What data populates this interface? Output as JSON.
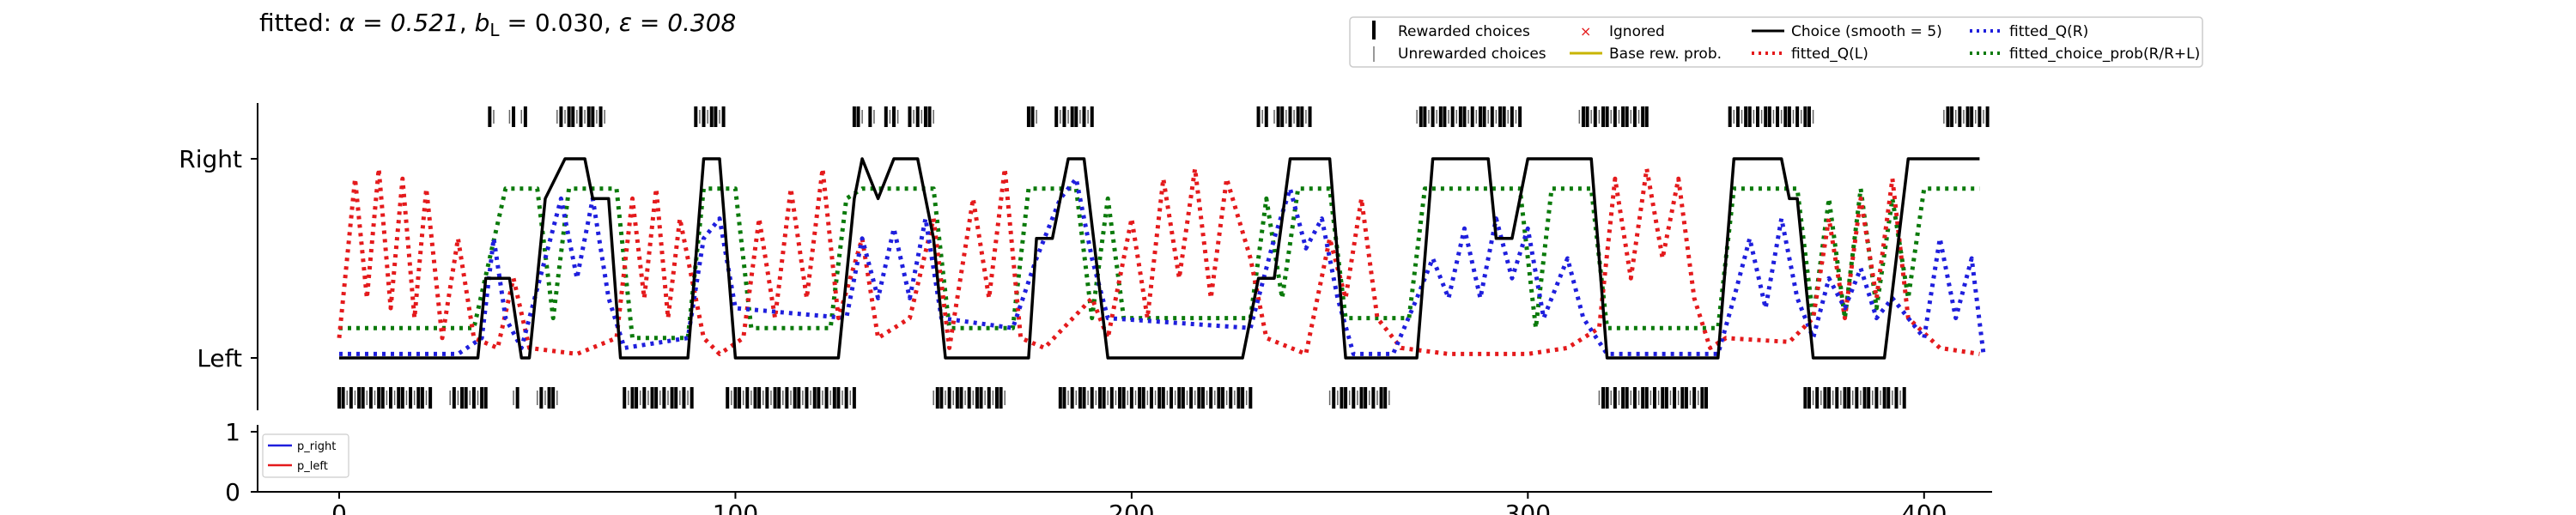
{
  "title": {
    "prefix": "fitted: ",
    "alpha_label": "α = 0.521",
    "bL_label": "b",
    "bL_sub": "L",
    "bL_value": " = 0.030",
    "eps_label": "ε = 0.308"
  },
  "legend_main": {
    "rewarded": "Rewarded choices",
    "unrewarded": "Unrewarded choices",
    "ignored": "Ignored",
    "base_prob": "Base rew. prob.",
    "choice_smooth": "Choice (smooth = 5)",
    "fitted_qL": "fitted_Q(L)",
    "fitted_qR": "fitted_Q(R)",
    "fitted_prob": "fitted_choice_prob(R/R+L)"
  },
  "legend_small": {
    "p_right": "p_right",
    "p_left": "p_left"
  },
  "colors": {
    "choice": "#000000",
    "qL": "#e41a1c",
    "qR": "#1f1fdd",
    "prob": "#0b7a0b",
    "p_right": "#1f1fdd",
    "p_left": "#e41a1c",
    "base": "#c8b400",
    "ignored": "#e41a1c"
  },
  "chart_data": [
    {
      "type": "line",
      "ytick_labels": [
        "Left",
        "Right"
      ],
      "xlim": [
        -20,
        415
      ],
      "ylim": [
        -0.3,
        1.3
      ],
      "choices": {
        "right_trials": [
          [
            38,
            39
          ],
          [
            43,
            44
          ],
          [
            46,
            47
          ],
          [
            55,
            67
          ],
          [
            90,
            97
          ],
          [
            130,
            132
          ],
          [
            134,
            135
          ],
          [
            138,
            141
          ],
          [
            144,
            150
          ],
          [
            174,
            176
          ],
          [
            181,
            190
          ],
          [
            232,
            234
          ],
          [
            236,
            245
          ],
          [
            272,
            298
          ],
          [
            313,
            330
          ],
          [
            351,
            372
          ],
          [
            405,
            416
          ]
        ],
        "left_trials": [
          [
            0,
            23
          ],
          [
            28,
            37
          ],
          [
            44,
            45
          ],
          [
            50,
            55
          ],
          [
            72,
            89
          ],
          [
            98,
            130
          ],
          [
            150,
            168
          ],
          [
            182,
            230
          ],
          [
            250,
            265
          ],
          [
            318,
            345
          ],
          [
            370,
            395
          ]
        ]
      },
      "series": {
        "choice_smooth": [
          [
            0,
            0
          ],
          [
            35,
            0
          ],
          [
            37,
            0.4
          ],
          [
            43,
            0.4
          ],
          [
            46,
            0
          ],
          [
            48,
            0
          ],
          [
            52,
            0.8
          ],
          [
            57,
            1
          ],
          [
            62,
            1
          ],
          [
            64,
            0.8
          ],
          [
            68,
            0.8
          ],
          [
            71,
            0
          ],
          [
            88,
            0
          ],
          [
            92,
            1
          ],
          [
            96,
            1
          ],
          [
            100,
            0
          ],
          [
            126,
            0
          ],
          [
            130,
            0.8
          ],
          [
            132,
            1
          ],
          [
            136,
            0.8
          ],
          [
            140,
            1
          ],
          [
            146,
            1
          ],
          [
            150,
            0.6
          ],
          [
            153,
            0
          ],
          [
            174,
            0
          ],
          [
            176,
            0.6
          ],
          [
            180,
            0.6
          ],
          [
            184,
            1
          ],
          [
            188,
            1
          ],
          [
            194,
            0
          ],
          [
            228,
            0
          ],
          [
            232,
            0.4
          ],
          [
            236,
            0.4
          ],
          [
            240,
            1
          ],
          [
            250,
            1
          ],
          [
            254,
            0
          ],
          [
            272,
            0
          ],
          [
            276,
            1
          ],
          [
            290,
            1
          ],
          [
            292,
            0.6
          ],
          [
            296,
            0.6
          ],
          [
            300,
            1
          ],
          [
            316,
            1
          ],
          [
            320,
            0
          ],
          [
            348,
            0
          ],
          [
            352,
            1
          ],
          [
            364,
            1
          ],
          [
            366,
            0.8
          ],
          [
            368,
            0.8
          ],
          [
            372,
            0
          ],
          [
            390,
            0
          ],
          [
            396,
            1
          ],
          [
            414,
            1
          ]
        ],
        "qL": [
          [
            0,
            0.1
          ],
          [
            4,
            0.9
          ],
          [
            7,
            0.3
          ],
          [
            10,
            0.95
          ],
          [
            13,
            0.25
          ],
          [
            16,
            0.9
          ],
          [
            19,
            0.2
          ],
          [
            22,
            0.85
          ],
          [
            26,
            0.1
          ],
          [
            30,
            0.6
          ],
          [
            34,
            0.1
          ],
          [
            40,
            0.05
          ],
          [
            44,
            0.4
          ],
          [
            48,
            0.05
          ],
          [
            60,
            0.02
          ],
          [
            70,
            0.1
          ],
          [
            74,
            0.8
          ],
          [
            77,
            0.3
          ],
          [
            80,
            0.85
          ],
          [
            83,
            0.2
          ],
          [
            86,
            0.7
          ],
          [
            92,
            0.1
          ],
          [
            96,
            0.02
          ],
          [
            102,
            0.1
          ],
          [
            106,
            0.7
          ],
          [
            110,
            0.2
          ],
          [
            114,
            0.85
          ],
          [
            118,
            0.3
          ],
          [
            122,
            0.95
          ],
          [
            126,
            0.2
          ],
          [
            132,
            0.6
          ],
          [
            136,
            0.1
          ],
          [
            144,
            0.2
          ],
          [
            150,
            0.7
          ],
          [
            154,
            0.05
          ],
          [
            160,
            0.8
          ],
          [
            164,
            0.3
          ],
          [
            168,
            0.95
          ],
          [
            172,
            0.1
          ],
          [
            178,
            0.05
          ],
          [
            190,
            0.3
          ],
          [
            194,
            0.1
          ],
          [
            200,
            0.7
          ],
          [
            204,
            0.2
          ],
          [
            208,
            0.9
          ],
          [
            212,
            0.4
          ],
          [
            216,
            0.95
          ],
          [
            220,
            0.3
          ],
          [
            224,
            0.9
          ],
          [
            230,
            0.5
          ],
          [
            234,
            0.1
          ],
          [
            244,
            0.02
          ],
          [
            250,
            0.6
          ],
          [
            254,
            0.3
          ],
          [
            258,
            0.8
          ],
          [
            262,
            0.2
          ],
          [
            268,
            0.05
          ],
          [
            280,
            0.02
          ],
          [
            300,
            0.02
          ],
          [
            310,
            0.05
          ],
          [
            318,
            0.15
          ],
          [
            322,
            0.9
          ],
          [
            326,
            0.4
          ],
          [
            330,
            0.95
          ],
          [
            334,
            0.5
          ],
          [
            338,
            0.9
          ],
          [
            342,
            0.3
          ],
          [
            346,
            0.05
          ],
          [
            350,
            0.1
          ],
          [
            366,
            0.08
          ],
          [
            372,
            0.2
          ],
          [
            376,
            0.7
          ],
          [
            380,
            0.2
          ],
          [
            384,
            0.8
          ],
          [
            388,
            0.3
          ],
          [
            392,
            0.9
          ],
          [
            396,
            0.2
          ],
          [
            404,
            0.05
          ],
          [
            414,
            0.02
          ]
        ],
        "qR": [
          [
            0,
            0.02
          ],
          [
            30,
            0.02
          ],
          [
            36,
            0.1
          ],
          [
            39,
            0.6
          ],
          [
            42,
            0.2
          ],
          [
            46,
            0.05
          ],
          [
            52,
            0.5
          ],
          [
            56,
            0.8
          ],
          [
            60,
            0.4
          ],
          [
            64,
            0.8
          ],
          [
            68,
            0.3
          ],
          [
            72,
            0.05
          ],
          [
            88,
            0.1
          ],
          [
            92,
            0.6
          ],
          [
            96,
            0.7
          ],
          [
            100,
            0.25
          ],
          [
            128,
            0.2
          ],
          [
            132,
            0.6
          ],
          [
            136,
            0.3
          ],
          [
            140,
            0.65
          ],
          [
            144,
            0.3
          ],
          [
            148,
            0.7
          ],
          [
            152,
            0.2
          ],
          [
            170,
            0.15
          ],
          [
            176,
            0.5
          ],
          [
            182,
            0.8
          ],
          [
            186,
            0.9
          ],
          [
            190,
            0.5
          ],
          [
            194,
            0.2
          ],
          [
            230,
            0.15
          ],
          [
            236,
            0.6
          ],
          [
            240,
            0.85
          ],
          [
            244,
            0.55
          ],
          [
            248,
            0.7
          ],
          [
            252,
            0.3
          ],
          [
            256,
            0.02
          ],
          [
            266,
            0.02
          ],
          [
            272,
            0.3
          ],
          [
            276,
            0.5
          ],
          [
            280,
            0.3
          ],
          [
            284,
            0.65
          ],
          [
            288,
            0.3
          ],
          [
            292,
            0.7
          ],
          [
            296,
            0.4
          ],
          [
            300,
            0.65
          ],
          [
            304,
            0.2
          ],
          [
            310,
            0.5
          ],
          [
            314,
            0.2
          ],
          [
            320,
            0.02
          ],
          [
            348,
            0.02
          ],
          [
            352,
            0.3
          ],
          [
            356,
            0.6
          ],
          [
            360,
            0.25
          ],
          [
            364,
            0.7
          ],
          [
            368,
            0.3
          ],
          [
            372,
            0.1
          ],
          [
            376,
            0.4
          ],
          [
            380,
            0.25
          ],
          [
            384,
            0.45
          ],
          [
            388,
            0.2
          ],
          [
            392,
            0.3
          ],
          [
            400,
            0.1
          ],
          [
            404,
            0.6
          ],
          [
            408,
            0.2
          ],
          [
            412,
            0.5
          ],
          [
            415,
            0.02
          ]
        ],
        "fitted_prob": [
          [
            0,
            0.15
          ],
          [
            34,
            0.15
          ],
          [
            38,
            0.5
          ],
          [
            42,
            0.85
          ],
          [
            50,
            0.85
          ],
          [
            54,
            0.2
          ],
          [
            58,
            0.85
          ],
          [
            70,
            0.85
          ],
          [
            74,
            0.1
          ],
          [
            88,
            0.1
          ],
          [
            92,
            0.85
          ],
          [
            100,
            0.85
          ],
          [
            104,
            0.15
          ],
          [
            124,
            0.15
          ],
          [
            128,
            0.8
          ],
          [
            132,
            0.85
          ],
          [
            150,
            0.85
          ],
          [
            154,
            0.15
          ],
          [
            170,
            0.15
          ],
          [
            174,
            0.85
          ],
          [
            186,
            0.85
          ],
          [
            190,
            0.2
          ],
          [
            194,
            0.8
          ],
          [
            198,
            0.2
          ],
          [
            230,
            0.2
          ],
          [
            234,
            0.8
          ],
          [
            238,
            0.3
          ],
          [
            242,
            0.85
          ],
          [
            250,
            0.85
          ],
          [
            254,
            0.2
          ],
          [
            270,
            0.2
          ],
          [
            274,
            0.85
          ],
          [
            298,
            0.85
          ],
          [
            302,
            0.15
          ],
          [
            306,
            0.85
          ],
          [
            316,
            0.85
          ],
          [
            320,
            0.15
          ],
          [
            348,
            0.15
          ],
          [
            352,
            0.85
          ],
          [
            368,
            0.85
          ],
          [
            372,
            0.2
          ],
          [
            376,
            0.8
          ],
          [
            380,
            0.2
          ],
          [
            384,
            0.85
          ],
          [
            388,
            0.25
          ],
          [
            392,
            0.8
          ],
          [
            396,
            0.3
          ],
          [
            400,
            0.85
          ],
          [
            414,
            0.85
          ]
        ],
        "p_right": [],
        "p_left": []
      },
      "xticks": [
        0,
        100,
        200,
        300,
        400
      ]
    },
    {
      "type": "line",
      "yticks": [
        0,
        1
      ],
      "xticks": [
        0,
        100,
        200,
        300,
        400
      ],
      "series": [
        {
          "name": "p_right",
          "values": []
        },
        {
          "name": "p_left",
          "values": []
        }
      ]
    }
  ]
}
